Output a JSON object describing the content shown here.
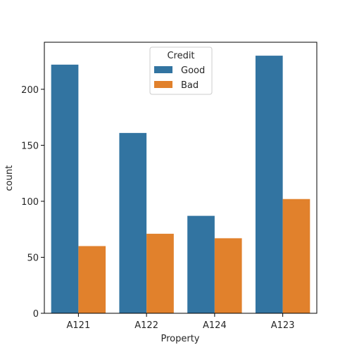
{
  "chart_data": {
    "type": "bar",
    "xlabel": "Property",
    "ylabel": "count",
    "categories": [
      "A121",
      "A122",
      "A124",
      "A123"
    ],
    "series": [
      {
        "name": "Good",
        "values": [
          222,
          161,
          87,
          230
        ],
        "color": "#3274a1"
      },
      {
        "name": "Bad",
        "values": [
          60,
          71,
          67,
          102
        ],
        "color": "#e1812c"
      }
    ],
    "ylim": [
      0,
      242
    ],
    "yticks": [
      0,
      50,
      100,
      150,
      200
    ],
    "legend": {
      "title": "Credit",
      "placement": "upper-center"
    },
    "grid": false
  }
}
